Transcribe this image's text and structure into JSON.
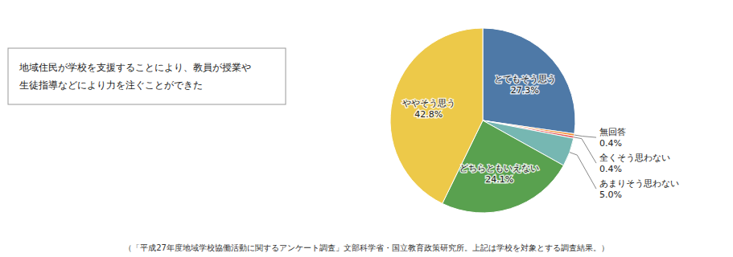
{
  "chart_data": {
    "type": "pie",
    "title": "地域住民が学校を支援することにより、教員が授業や\n生徒指導などにより力を注ぐことができた",
    "categories": [
      "とてもそう思う",
      "無回答",
      "全くそう思わない",
      "あまりそう思わない",
      "どちらともいえない",
      "ややそう思う"
    ],
    "values": [
      27.3,
      0.4,
      0.4,
      5.0,
      24.1,
      42.8
    ],
    "value_labels": [
      "27.3%",
      "0.4%",
      "0.4%",
      "5.0%",
      "24.1%",
      "42.8%"
    ],
    "data_labels": true,
    "annotations": [
      "（「平成27年度地域学校協働活動に関するアンケート調査」文部科学省・国立教育政策研究所。上記は学校を対象とする調査結果。）"
    ]
  }
}
